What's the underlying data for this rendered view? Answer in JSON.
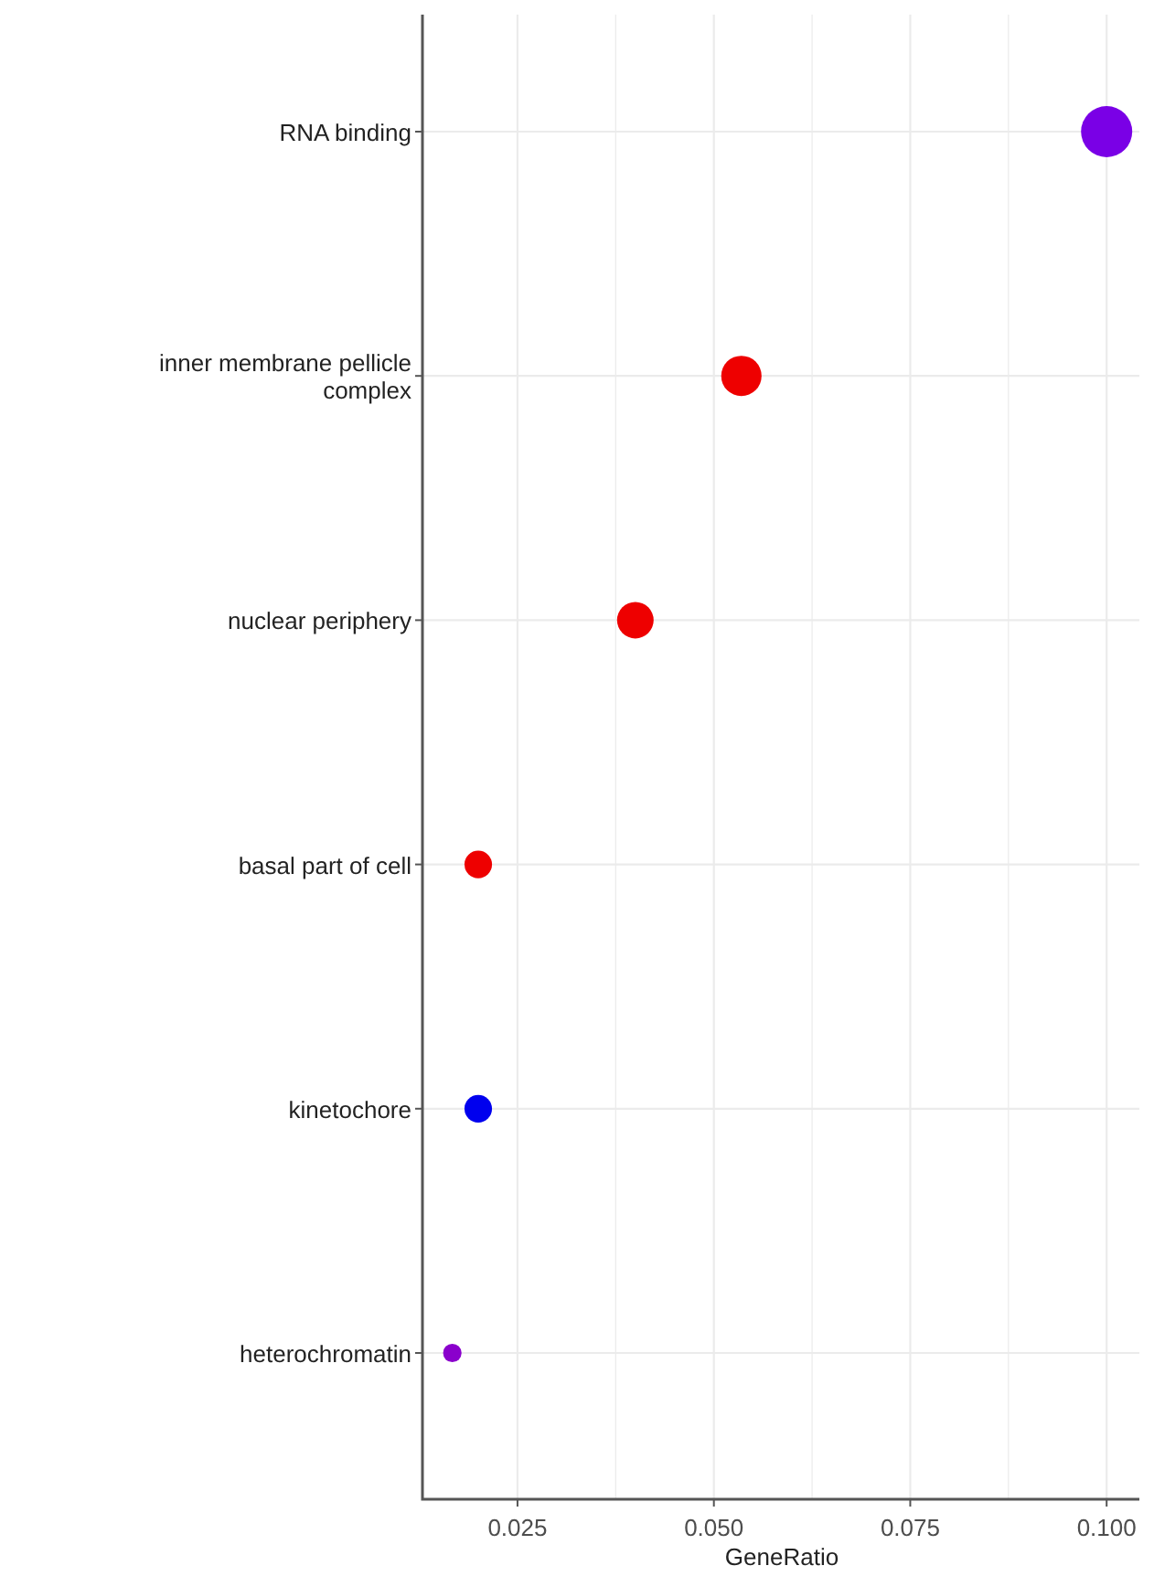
{
  "chart_data": {
    "type": "bubble",
    "orientation": "horizontal",
    "xlabel": "GeneRatio",
    "categories": [
      "RNA binding",
      "inner membrane pellicle complex",
      "nuclear periphery",
      "basal part of cell",
      "kinetochore",
      "heterochromatin"
    ],
    "values": [
      0.1,
      0.0535,
      0.04,
      0.02,
      0.02,
      0.0167
    ],
    "sizes": [
      1,
      0.62,
      0.51,
      0.29,
      0.29,
      0.13
    ],
    "colors": [
      "#7a00e6",
      "#ee0000",
      "#ee0000",
      "#ee0000",
      "#0000ee",
      "#8a00cc"
    ],
    "xlim": [
      0.0129,
      0.1044
    ],
    "xticks": [
      0.025,
      {
        "value": 0.05,
        "label": "0.050"
      },
      0.075,
      {
        "value": 0.1,
        "label": "0.100"
      }
    ],
    "grid": true
  }
}
